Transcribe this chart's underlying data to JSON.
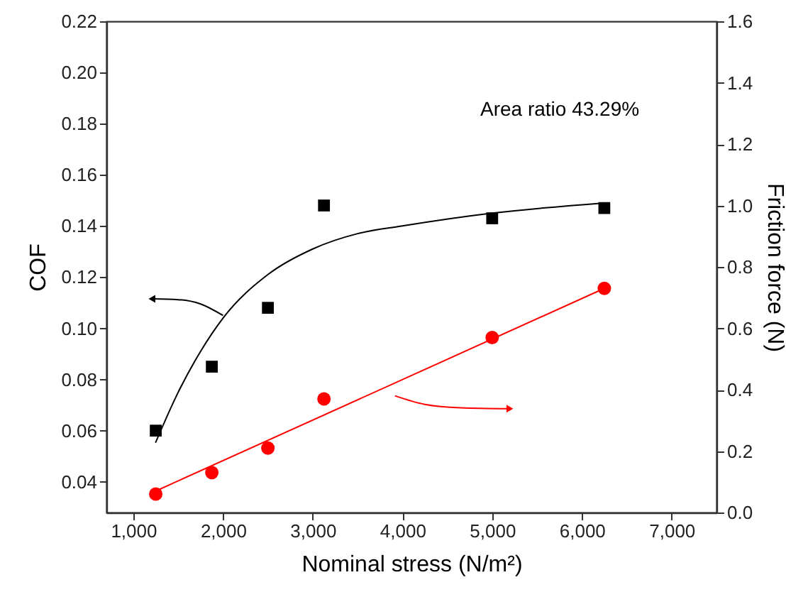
{
  "chart_data": {
    "type": "scatter",
    "xlabel": "Nominal stress (N/m²)",
    "ylabel": "COF",
    "y2label": "Friction force (N)",
    "annotations": [
      "Area ratio 43.29%"
    ],
    "xlim": [
      700,
      7500
    ],
    "xticks": [
      {
        "value": 1000,
        "label": "1,000"
      },
      {
        "value": 2000,
        "label": "2,000"
      },
      {
        "value": 3000,
        "label": "3,000"
      },
      {
        "value": 4000,
        "label": "4,000"
      },
      {
        "value": 5000,
        "label": "5,000"
      },
      {
        "value": 6000,
        "label": "6,000"
      },
      {
        "value": 7000,
        "label": "7,000"
      }
    ],
    "ylim": [
      0.028,
      0.22
    ],
    "yticks": [
      {
        "value": 0.04,
        "label": "0.04"
      },
      {
        "value": 0.06,
        "label": "0.06"
      },
      {
        "value": 0.08,
        "label": "0.08"
      },
      {
        "value": 0.1,
        "label": "0.10"
      },
      {
        "value": 0.12,
        "label": "0.12"
      },
      {
        "value": 0.14,
        "label": "0.14"
      },
      {
        "value": 0.16,
        "label": "0.16"
      },
      {
        "value": 0.18,
        "label": "0.18"
      },
      {
        "value": 0.2,
        "label": "0.20"
      },
      {
        "value": 0.22,
        "label": "0.22"
      }
    ],
    "y2lim": [
      0,
      1.6
    ],
    "y2ticks": [
      {
        "value": 0,
        "label": "0.0"
      },
      {
        "value": 0.2,
        "label": "0.2"
      },
      {
        "value": 0.4,
        "label": "0.4"
      },
      {
        "value": 0.6,
        "label": "0.6"
      },
      {
        "value": 0.8,
        "label": "0.8"
      },
      {
        "value": 1,
        "label": "1.0"
      },
      {
        "value": 1.2,
        "label": "1.2"
      },
      {
        "value": 1.4,
        "label": "1.4"
      },
      {
        "value": 1.6,
        "label": "1.6"
      }
    ],
    "series": [
      {
        "marker": "square",
        "color": "#000000",
        "x": [
          1250,
          1875,
          2500,
          3125,
          5000,
          6250
        ],
        "values": [
          0.06,
          0.085,
          0.108,
          0.148,
          0.143,
          0.147
        ]
      },
      {
        "type": "line",
        "color": "#000000",
        "x": [
          1250,
          1500,
          1750,
          2000,
          2500,
          3000,
          3500,
          4000,
          5000,
          6250
        ],
        "values": [
          0.0555,
          0.075,
          0.091,
          0.104,
          0.121,
          0.131,
          0.137,
          0.14,
          0.145,
          0.149
        ]
      },
      {
        "marker": "circle",
        "axis": "y2",
        "color": "#ff0000",
        "x": [
          1250,
          1875,
          2500,
          3125,
          5000,
          6250
        ],
        "values": [
          0.06,
          0.13,
          0.21,
          0.37,
          0.57,
          0.73
        ]
      },
      {
        "type": "line",
        "axis": "y2",
        "color": "#ff0000",
        "x": [
          1250,
          6250
        ],
        "values": [
          0.07,
          0.73
        ]
      }
    ]
  }
}
